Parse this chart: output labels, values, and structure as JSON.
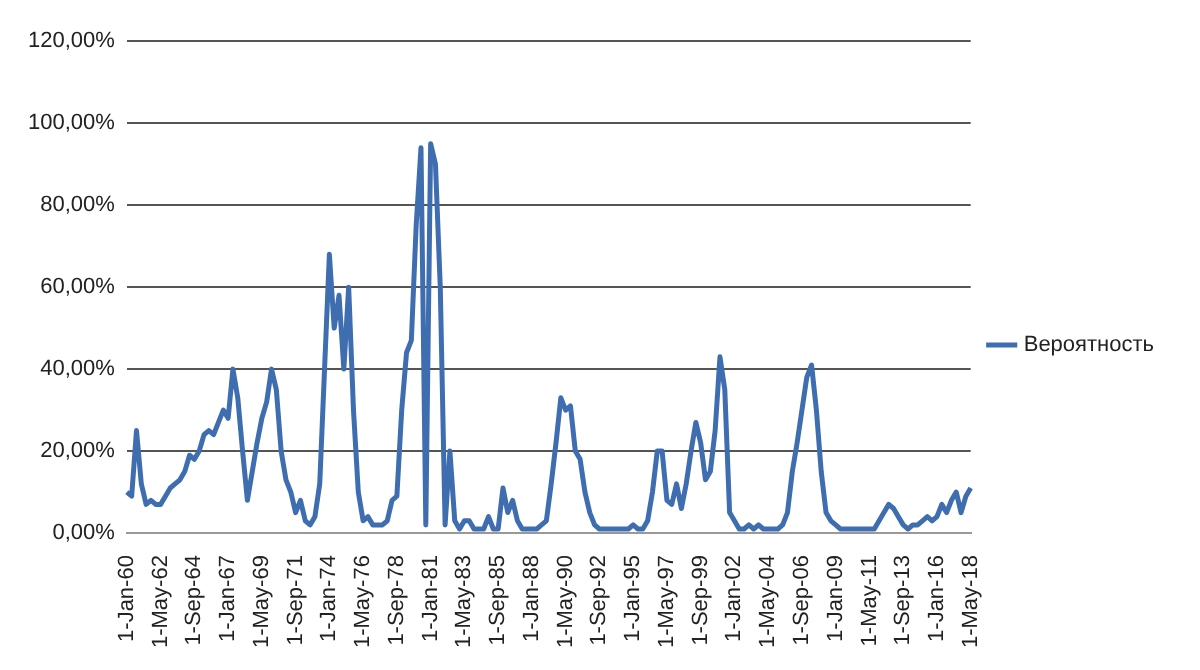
{
  "chart_data": {
    "type": "line",
    "categories": [
      "1-Jan-60",
      null,
      null,
      null,
      null,
      null,
      null,
      "1-May-62",
      null,
      null,
      null,
      null,
      null,
      null,
      "1-Sep-64",
      null,
      null,
      null,
      null,
      null,
      null,
      "1-Jan-67",
      null,
      null,
      null,
      null,
      null,
      null,
      "1-May-69",
      null,
      null,
      null,
      null,
      null,
      null,
      "1-Sep-71",
      null,
      null,
      null,
      null,
      null,
      null,
      "1-Jan-74",
      null,
      null,
      null,
      null,
      null,
      null,
      "1-May-76",
      null,
      null,
      null,
      null,
      null,
      null,
      "1-Sep-78",
      null,
      null,
      null,
      null,
      null,
      null,
      "1-Jan-81",
      null,
      null,
      null,
      null,
      null,
      null,
      "1-May-83",
      null,
      null,
      null,
      null,
      null,
      null,
      "1-Sep-85",
      null,
      null,
      null,
      null,
      null,
      null,
      "1-Jan-88",
      null,
      null,
      null,
      null,
      null,
      null,
      "1-May-90",
      null,
      null,
      null,
      null,
      null,
      null,
      "1-Sep-92",
      null,
      null,
      null,
      null,
      null,
      null,
      "1-Jan-95",
      null,
      null,
      null,
      null,
      null,
      null,
      "1-May-97",
      null,
      null,
      null,
      null,
      null,
      null,
      "1-Sep-99",
      null,
      null,
      null,
      null,
      null,
      null,
      "1-Jan-02",
      null,
      null,
      null,
      null,
      null,
      null,
      "1-May-04",
      null,
      null,
      null,
      null,
      null,
      null,
      "1-Sep-06",
      null,
      null,
      null,
      null,
      null,
      null,
      "1-Jan-09",
      null,
      null,
      null,
      null,
      null,
      null,
      "1-May-11",
      null,
      null,
      null,
      null,
      null,
      null,
      "1-Sep-13",
      null,
      null,
      null,
      null,
      null,
      null,
      "1-Jan-16",
      null,
      null,
      null,
      null,
      null,
      null,
      "1-May-18"
    ],
    "series": [
      {
        "name": "Вероятность",
        "color": "#3f6eb0",
        "values": [
          10,
          9,
          25,
          12,
          7,
          8,
          7,
          7,
          9,
          11,
          12,
          13,
          15,
          19,
          18,
          20,
          24,
          25,
          24,
          27,
          30,
          28,
          40,
          33,
          20,
          8,
          15,
          22,
          28,
          32,
          40,
          35,
          20,
          13,
          10,
          5,
          8,
          3,
          2,
          4,
          12,
          40,
          68,
          50,
          58,
          40,
          60,
          30,
          10,
          3,
          4,
          2,
          2,
          2,
          3,
          8,
          9,
          30,
          44,
          47,
          75,
          94,
          2,
          95,
          90,
          60,
          2,
          20,
          3,
          1,
          3,
          3,
          1,
          1,
          1,
          4,
          1,
          1,
          11,
          5,
          8,
          3,
          1,
          1,
          1,
          1,
          2,
          3,
          12,
          22,
          33,
          30,
          31,
          20,
          18,
          10,
          5,
          2,
          1,
          1,
          1,
          1,
          1,
          1,
          1,
          2,
          1,
          1,
          3,
          10,
          20,
          20,
          8,
          7,
          12,
          6,
          12,
          20,
          27,
          22,
          13,
          15,
          25,
          43,
          35,
          5,
          3,
          1,
          1,
          2,
          1,
          2,
          1,
          1,
          1,
          1,
          2,
          5,
          15,
          22,
          30,
          38,
          41,
          30,
          15,
          5,
          3,
          2,
          1,
          1,
          1,
          1,
          1,
          1,
          1,
          1,
          3,
          5,
          7,
          6,
          4,
          2,
          1,
          2,
          2,
          3,
          4,
          3,
          4,
          7,
          5,
          8,
          10,
          5,
          9,
          11
        ]
      }
    ],
    "ylim": [
      0,
      120
    ],
    "yticks": [
      {
        "value": 0,
        "label": "0,00%"
      },
      {
        "value": 20,
        "label": "20,00%"
      },
      {
        "value": 40,
        "label": "40,00%"
      },
      {
        "value": 60,
        "label": "60,00%"
      },
      {
        "value": 80,
        "label": "80,00%"
      },
      {
        "value": 100,
        "label": "100,00%"
      },
      {
        "value": 120,
        "label": "120,00%"
      }
    ],
    "grid": "y",
    "legend": "right",
    "marker": "none",
    "line_style": "solid"
  }
}
